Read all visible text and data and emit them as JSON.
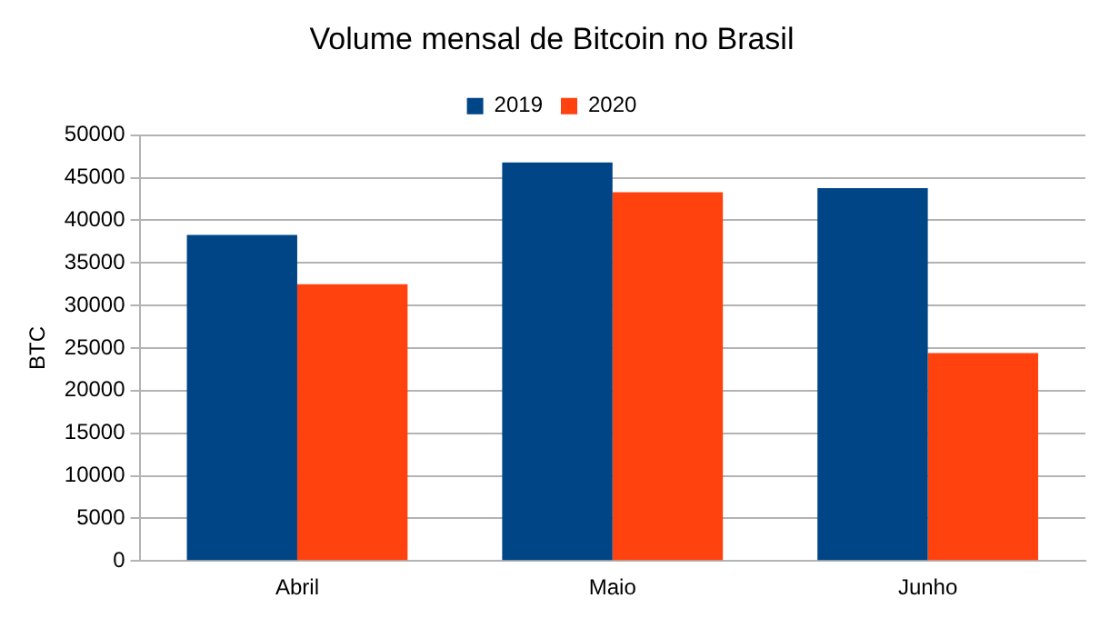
{
  "chart_data": {
    "type": "bar",
    "title": "Volume mensal de Bitcoin no Brasil",
    "ylabel": "BTC",
    "categories": [
      "Abril",
      "Maio",
      "Junho"
    ],
    "series": [
      {
        "name": "2019",
        "color": "#004586",
        "values": [
          38300,
          46800,
          43800
        ]
      },
      {
        "name": "2020",
        "color": "#ff420e",
        "values": [
          32500,
          43300,
          24400
        ]
      }
    ],
    "ylim": [
      0,
      50000
    ],
    "yticks": [
      0,
      5000,
      10000,
      15000,
      20000,
      25000,
      30000,
      35000,
      40000,
      45000,
      50000
    ],
    "grid": "y",
    "legend": "top"
  }
}
